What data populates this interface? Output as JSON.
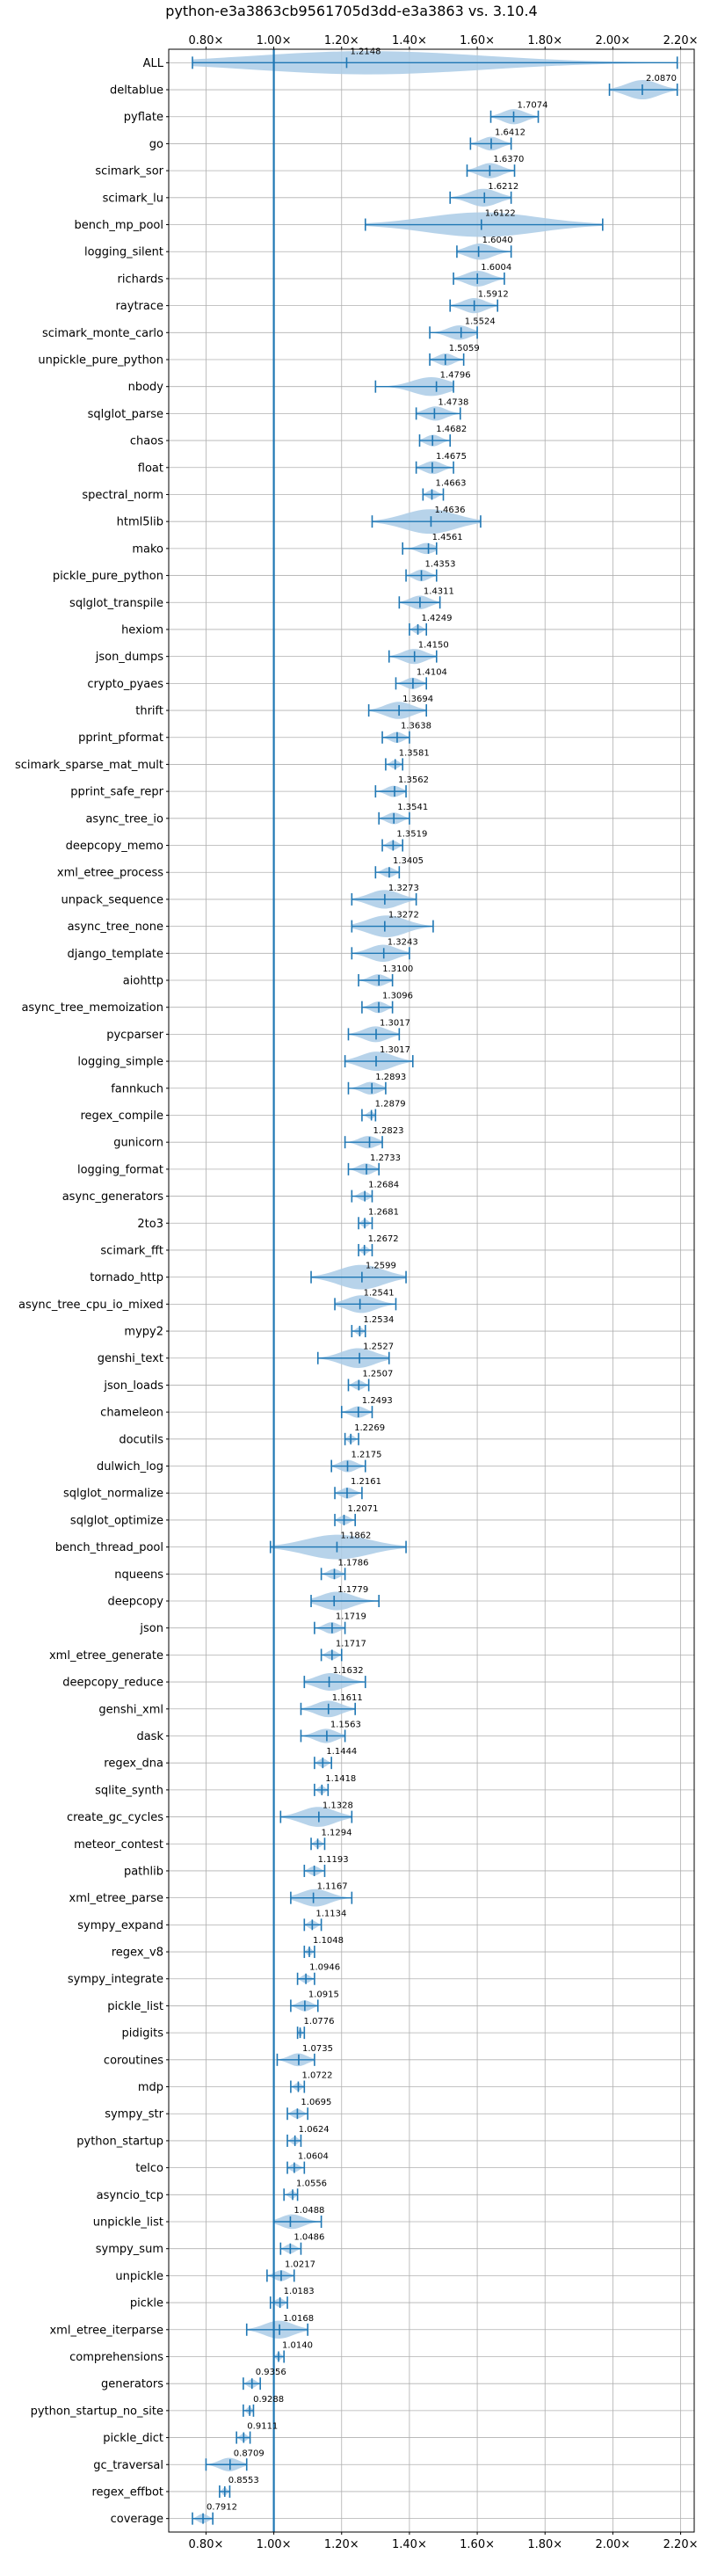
{
  "chart_data": {
    "type": "violin",
    "title": "python-e3a3863cb9561705d3dd-e3a3863 vs. 3.10.4",
    "xlim": [
      0.69,
      2.24
    ],
    "xticks": [
      {
        "value": 0.8,
        "label": "0.80×"
      },
      {
        "value": 1.0,
        "label": "1.00×"
      },
      {
        "value": 1.2,
        "label": "1.20×"
      },
      {
        "value": 1.4,
        "label": "1.40×"
      },
      {
        "value": 1.6,
        "label": "1.60×"
      },
      {
        "value": 1.8,
        "label": "1.80×"
      },
      {
        "value": 2.0,
        "label": "2.00×"
      },
      {
        "value": 2.2,
        "label": "2.20×"
      }
    ],
    "reference_line": 1.0,
    "grid": true,
    "benchmarks": [
      {
        "name": "ALL",
        "label": "1.2148",
        "value": 1.2148,
        "min": 0.76,
        "max": 2.19
      },
      {
        "name": "deltablue",
        "label": "2.0870",
        "value": 2.087,
        "min": 1.99,
        "max": 2.19
      },
      {
        "name": "pyflate",
        "label": "1.7074",
        "value": 1.7074,
        "min": 1.64,
        "max": 1.78
      },
      {
        "name": "go",
        "label": "1.6412",
        "value": 1.6412,
        "min": 1.58,
        "max": 1.7
      },
      {
        "name": "scimark_sor",
        "label": "1.6370",
        "value": 1.637,
        "min": 1.57,
        "max": 1.71
      },
      {
        "name": "scimark_lu",
        "label": "1.6212",
        "value": 1.6212,
        "min": 1.52,
        "max": 1.7
      },
      {
        "name": "bench_mp_pool",
        "label": "1.6122",
        "value": 1.6122,
        "min": 1.27,
        "max": 1.97
      },
      {
        "name": "logging_silent",
        "label": "1.6040",
        "value": 1.604,
        "min": 1.54,
        "max": 1.7
      },
      {
        "name": "richards",
        "label": "1.6004",
        "value": 1.6004,
        "min": 1.53,
        "max": 1.68
      },
      {
        "name": "raytrace",
        "label": "1.5912",
        "value": 1.5912,
        "min": 1.52,
        "max": 1.66
      },
      {
        "name": "scimark_monte_carlo",
        "label": "1.5524",
        "value": 1.5524,
        "min": 1.46,
        "max": 1.6
      },
      {
        "name": "unpickle_pure_python",
        "label": "1.5059",
        "value": 1.5059,
        "min": 1.46,
        "max": 1.56
      },
      {
        "name": "nbody",
        "label": "1.4796",
        "value": 1.4796,
        "min": 1.3,
        "max": 1.53
      },
      {
        "name": "sqlglot_parse",
        "label": "1.4738",
        "value": 1.4738,
        "min": 1.42,
        "max": 1.55
      },
      {
        "name": "chaos",
        "label": "1.4682",
        "value": 1.4682,
        "min": 1.43,
        "max": 1.52
      },
      {
        "name": "float",
        "label": "1.4675",
        "value": 1.4675,
        "min": 1.42,
        "max": 1.53
      },
      {
        "name": "spectral_norm",
        "label": "1.4663",
        "value": 1.4663,
        "min": 1.44,
        "max": 1.5
      },
      {
        "name": "html5lib",
        "label": "1.4636",
        "value": 1.4636,
        "min": 1.29,
        "max": 1.61
      },
      {
        "name": "mako",
        "label": "1.4561",
        "value": 1.4561,
        "min": 1.38,
        "max": 1.48
      },
      {
        "name": "pickle_pure_python",
        "label": "1.4353",
        "value": 1.4353,
        "min": 1.39,
        "max": 1.48
      },
      {
        "name": "sqlglot_transpile",
        "label": "1.4311",
        "value": 1.4311,
        "min": 1.37,
        "max": 1.49
      },
      {
        "name": "hexiom",
        "label": "1.4249",
        "value": 1.4249,
        "min": 1.4,
        "max": 1.45
      },
      {
        "name": "json_dumps",
        "label": "1.4150",
        "value": 1.415,
        "min": 1.34,
        "max": 1.48
      },
      {
        "name": "crypto_pyaes",
        "label": "1.4104",
        "value": 1.4104,
        "min": 1.36,
        "max": 1.45
      },
      {
        "name": "thrift",
        "label": "1.3694",
        "value": 1.3694,
        "min": 1.28,
        "max": 1.45
      },
      {
        "name": "pprint_pformat",
        "label": "1.3638",
        "value": 1.3638,
        "min": 1.32,
        "max": 1.4
      },
      {
        "name": "scimark_sparse_mat_mult",
        "label": "1.3581",
        "value": 1.3581,
        "min": 1.33,
        "max": 1.38
      },
      {
        "name": "pprint_safe_repr",
        "label": "1.3562",
        "value": 1.3562,
        "min": 1.3,
        "max": 1.39
      },
      {
        "name": "async_tree_io",
        "label": "1.3541",
        "value": 1.3541,
        "min": 1.31,
        "max": 1.4
      },
      {
        "name": "deepcopy_memo",
        "label": "1.3519",
        "value": 1.3519,
        "min": 1.32,
        "max": 1.38
      },
      {
        "name": "xml_etree_process",
        "label": "1.3405",
        "value": 1.3405,
        "min": 1.3,
        "max": 1.37
      },
      {
        "name": "unpack_sequence",
        "label": "1.3273",
        "value": 1.3273,
        "min": 1.23,
        "max": 1.42
      },
      {
        "name": "async_tree_none",
        "label": "1.3272",
        "value": 1.3272,
        "min": 1.23,
        "max": 1.47
      },
      {
        "name": "django_template",
        "label": "1.3243",
        "value": 1.3243,
        "min": 1.23,
        "max": 1.4
      },
      {
        "name": "aiohttp",
        "label": "1.3100",
        "value": 1.31,
        "min": 1.25,
        "max": 1.35
      },
      {
        "name": "async_tree_memoization",
        "label": "1.3096",
        "value": 1.3096,
        "min": 1.26,
        "max": 1.35
      },
      {
        "name": "pycparser",
        "label": "1.3017",
        "value": 1.3017,
        "min": 1.22,
        "max": 1.37
      },
      {
        "name": "logging_simple",
        "label": "1.3017",
        "value": 1.3017,
        "min": 1.21,
        "max": 1.41
      },
      {
        "name": "fannkuch",
        "label": "1.2893",
        "value": 1.2893,
        "min": 1.22,
        "max": 1.33
      },
      {
        "name": "regex_compile",
        "label": "1.2879",
        "value": 1.2879,
        "min": 1.26,
        "max": 1.3
      },
      {
        "name": "gunicorn",
        "label": "1.2823",
        "value": 1.2823,
        "min": 1.21,
        "max": 1.32
      },
      {
        "name": "logging_format",
        "label": "1.2733",
        "value": 1.2733,
        "min": 1.22,
        "max": 1.31
      },
      {
        "name": "async_generators",
        "label": "1.2684",
        "value": 1.2684,
        "min": 1.23,
        "max": 1.29
      },
      {
        "name": "2to3",
        "label": "1.2681",
        "value": 1.2681,
        "min": 1.25,
        "max": 1.29
      },
      {
        "name": "scimark_fft",
        "label": "1.2672",
        "value": 1.2672,
        "min": 1.25,
        "max": 1.29
      },
      {
        "name": "tornado_http",
        "label": "1.2599",
        "value": 1.2599,
        "min": 1.11,
        "max": 1.39
      },
      {
        "name": "async_tree_cpu_io_mixed",
        "label": "1.2541",
        "value": 1.2541,
        "min": 1.18,
        "max": 1.36
      },
      {
        "name": "mypy2",
        "label": "1.2534",
        "value": 1.2534,
        "min": 1.23,
        "max": 1.27
      },
      {
        "name": "genshi_text",
        "label": "1.2527",
        "value": 1.2527,
        "min": 1.13,
        "max": 1.34
      },
      {
        "name": "json_loads",
        "label": "1.2507",
        "value": 1.2507,
        "min": 1.22,
        "max": 1.28
      },
      {
        "name": "chameleon",
        "label": "1.2493",
        "value": 1.2493,
        "min": 1.2,
        "max": 1.29
      },
      {
        "name": "docutils",
        "label": "1.2269",
        "value": 1.2269,
        "min": 1.21,
        "max": 1.25
      },
      {
        "name": "dulwich_log",
        "label": "1.2175",
        "value": 1.2175,
        "min": 1.17,
        "max": 1.27
      },
      {
        "name": "sqlglot_normalize",
        "label": "1.2161",
        "value": 1.2161,
        "min": 1.18,
        "max": 1.26
      },
      {
        "name": "sqlglot_optimize",
        "label": "1.2071",
        "value": 1.2071,
        "min": 1.18,
        "max": 1.24
      },
      {
        "name": "bench_thread_pool",
        "label": "1.1862",
        "value": 1.1862,
        "min": 0.99,
        "max": 1.39
      },
      {
        "name": "nqueens",
        "label": "1.1786",
        "value": 1.1786,
        "min": 1.14,
        "max": 1.21
      },
      {
        "name": "deepcopy",
        "label": "1.1779",
        "value": 1.1779,
        "min": 1.11,
        "max": 1.31
      },
      {
        "name": "json",
        "label": "1.1719",
        "value": 1.1719,
        "min": 1.12,
        "max": 1.21
      },
      {
        "name": "xml_etree_generate",
        "label": "1.1717",
        "value": 1.1717,
        "min": 1.14,
        "max": 1.2
      },
      {
        "name": "deepcopy_reduce",
        "label": "1.1632",
        "value": 1.1632,
        "min": 1.09,
        "max": 1.27
      },
      {
        "name": "genshi_xml",
        "label": "1.1611",
        "value": 1.1611,
        "min": 1.08,
        "max": 1.24
      },
      {
        "name": "dask",
        "label": "1.1563",
        "value": 1.1563,
        "min": 1.08,
        "max": 1.21
      },
      {
        "name": "regex_dna",
        "label": "1.1444",
        "value": 1.1444,
        "min": 1.12,
        "max": 1.17
      },
      {
        "name": "sqlite_synth",
        "label": "1.1418",
        "value": 1.1418,
        "min": 1.12,
        "max": 1.16
      },
      {
        "name": "create_gc_cycles",
        "label": "1.1328",
        "value": 1.1328,
        "min": 1.02,
        "max": 1.23
      },
      {
        "name": "meteor_contest",
        "label": "1.1294",
        "value": 1.1294,
        "min": 1.11,
        "max": 1.15
      },
      {
        "name": "pathlib",
        "label": "1.1193",
        "value": 1.1193,
        "min": 1.09,
        "max": 1.15
      },
      {
        "name": "xml_etree_parse",
        "label": "1.1167",
        "value": 1.1167,
        "min": 1.05,
        "max": 1.23
      },
      {
        "name": "sympy_expand",
        "label": "1.1134",
        "value": 1.1134,
        "min": 1.09,
        "max": 1.14
      },
      {
        "name": "regex_v8",
        "label": "1.1048",
        "value": 1.1048,
        "min": 1.09,
        "max": 1.12
      },
      {
        "name": "sympy_integrate",
        "label": "1.0946",
        "value": 1.0946,
        "min": 1.07,
        "max": 1.12
      },
      {
        "name": "pickle_list",
        "label": "1.0915",
        "value": 1.0915,
        "min": 1.05,
        "max": 1.13
      },
      {
        "name": "pidigits",
        "label": "1.0776",
        "value": 1.0776,
        "min": 1.07,
        "max": 1.09
      },
      {
        "name": "coroutines",
        "label": "1.0735",
        "value": 1.0735,
        "min": 1.01,
        "max": 1.12
      },
      {
        "name": "mdp",
        "label": "1.0722",
        "value": 1.0722,
        "min": 1.05,
        "max": 1.09
      },
      {
        "name": "sympy_str",
        "label": "1.0695",
        "value": 1.0695,
        "min": 1.04,
        "max": 1.1
      },
      {
        "name": "python_startup",
        "label": "1.0624",
        "value": 1.0624,
        "min": 1.04,
        "max": 1.08
      },
      {
        "name": "telco",
        "label": "1.0604",
        "value": 1.0604,
        "min": 1.04,
        "max": 1.09
      },
      {
        "name": "asyncio_tcp",
        "label": "1.0556",
        "value": 1.0556,
        "min": 1.03,
        "max": 1.07
      },
      {
        "name": "unpickle_list",
        "label": "1.0488",
        "value": 1.0488,
        "min": 1.0,
        "max": 1.14
      },
      {
        "name": "sympy_sum",
        "label": "1.0486",
        "value": 1.0486,
        "min": 1.02,
        "max": 1.08
      },
      {
        "name": "unpickle",
        "label": "1.0217",
        "value": 1.0217,
        "min": 0.98,
        "max": 1.06
      },
      {
        "name": "pickle",
        "label": "1.0183",
        "value": 1.0183,
        "min": 0.99,
        "max": 1.04
      },
      {
        "name": "xml_etree_iterparse",
        "label": "1.0168",
        "value": 1.0168,
        "min": 0.92,
        "max": 1.1
      },
      {
        "name": "comprehensions",
        "label": "1.0140",
        "value": 1.014,
        "min": 1.0,
        "max": 1.03
      },
      {
        "name": "generators",
        "label": "0.9356",
        "value": 0.9356,
        "min": 0.91,
        "max": 0.96
      },
      {
        "name": "python_startup_no_site",
        "label": "0.9288",
        "value": 0.9288,
        "min": 0.91,
        "max": 0.94
      },
      {
        "name": "pickle_dict",
        "label": "0.9111",
        "value": 0.9111,
        "min": 0.89,
        "max": 0.93
      },
      {
        "name": "gc_traversal",
        "label": "0.8709",
        "value": 0.8709,
        "min": 0.8,
        "max": 0.92
      },
      {
        "name": "regex_effbot",
        "label": "0.8553",
        "value": 0.8553,
        "min": 0.84,
        "max": 0.87
      },
      {
        "name": "coverage",
        "label": "0.7912",
        "value": 0.7912,
        "min": 0.76,
        "max": 0.82
      }
    ],
    "colors": {
      "violin_fill": "#aacbe6",
      "line": "#1f77b4",
      "grid": "#b0b0b0"
    }
  }
}
